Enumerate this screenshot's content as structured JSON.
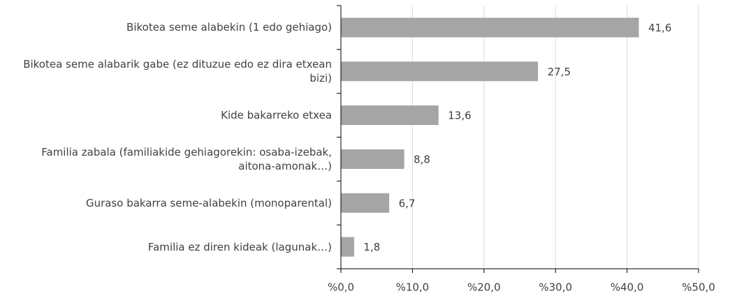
{
  "chart_data": {
    "type": "bar",
    "orientation": "horizontal",
    "categories": [
      "Bikotea seme alabekin (1 edo gehiago)",
      "Bikotea seme alabarik gabe (ez dituzue edo ez dira etxean bizi)",
      "Kide bakarreko etxea",
      "Familia zabala (familiakide gehiagorekin: osaba-izebak, aitona-amonak…)",
      "Guraso bakarra seme-alabekin (monoparental)",
      "Familia ez diren kideak (lagunak…)"
    ],
    "values": [
      41.6,
      27.5,
      13.6,
      8.8,
      6.7,
      1.8
    ],
    "value_labels": [
      "41,6",
      "27,5",
      "13,6",
      "8,8",
      "6,7",
      "1,8"
    ],
    "color": "#a5a5a5",
    "xlim": [
      0,
      50
    ],
    "xticks": [
      {
        "value": 0,
        "label": "%0,0"
      },
      {
        "value": 10,
        "label": "%10,0"
      },
      {
        "value": 20,
        "label": "%20,0"
      },
      {
        "value": 30,
        "label": "%30,0"
      },
      {
        "value": 40,
        "label": "%40,0"
      },
      {
        "value": 50,
        "label": "%50,0"
      }
    ],
    "grid": true
  }
}
